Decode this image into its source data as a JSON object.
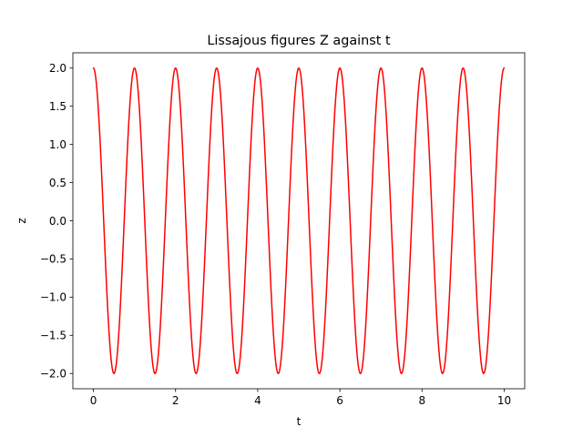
{
  "chart_data": {
    "type": "line",
    "title": "Lissajous figures Z against t",
    "xlabel": "t",
    "ylabel": "z",
    "xlim": [
      -0.5,
      10.5
    ],
    "ylim": [
      -2.2,
      2.2
    ],
    "x_ticks": [
      0,
      2,
      4,
      6,
      8,
      10
    ],
    "x_tick_labels": [
      "0",
      "2",
      "4",
      "6",
      "8",
      "10"
    ],
    "y_ticks": [
      2.0,
      1.5,
      1.0,
      0.5,
      0.0,
      -0.5,
      -1.0,
      -1.5,
      -2.0
    ],
    "y_tick_labels": [
      "2.0",
      "1.5",
      "1.0",
      "0.5",
      "0.0",
      "−0.5",
      "−1.0",
      "−1.5",
      "−2.0"
    ],
    "grid": false,
    "series": [
      {
        "color": "#ff0000",
        "function": "z = 2*cos(2*pi*t)",
        "amplitude": 2,
        "frequency": 1,
        "t_range": [
          0,
          10
        ],
        "x": [
          0,
          0.5,
          1,
          1.5,
          2,
          2.5,
          3,
          3.5,
          4,
          4.5,
          5,
          5.5,
          6,
          6.5,
          7,
          7.5,
          8,
          8.5,
          9,
          9.5,
          10
        ],
        "values": [
          2,
          -2,
          2,
          -2,
          2,
          -2,
          2,
          -2,
          2,
          -2,
          2,
          -2,
          2,
          -2,
          2,
          -2,
          2,
          -2,
          2,
          -2,
          2
        ]
      }
    ]
  }
}
